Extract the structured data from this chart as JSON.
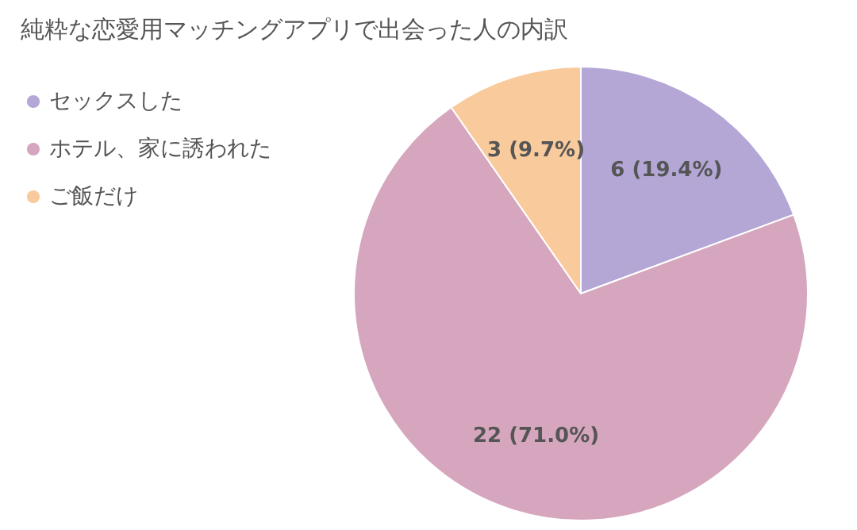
{
  "chart_data": {
    "type": "pie",
    "title": "純粋な恋愛用マッチングアプリで出会った人の内訳",
    "categories": [
      "セックスした",
      "ホテル、家に誘われた",
      "ご飯だけ"
    ],
    "values": [
      6,
      22,
      3
    ],
    "colors": [
      "#b4a7d6",
      "#d5a6bd",
      "#f9cb9c"
    ],
    "value_labels": [
      "6 (19.4%)",
      "22 (71.0%)",
      "3 (9.7%)"
    ],
    "legend": "top left"
  }
}
